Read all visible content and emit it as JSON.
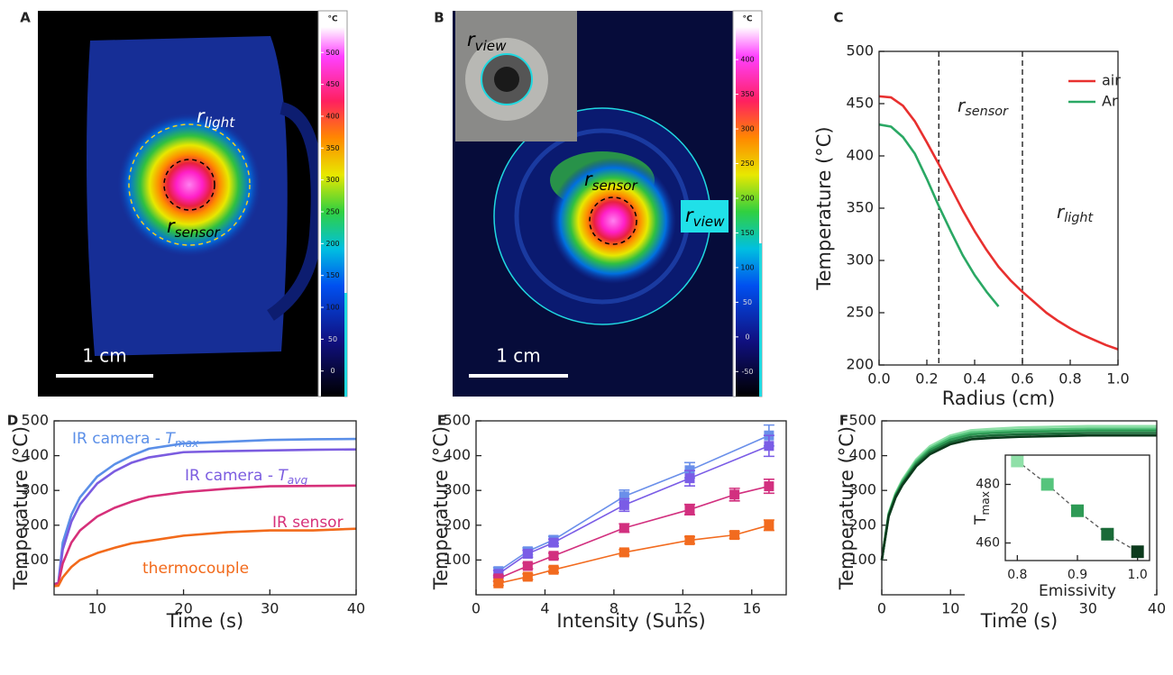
{
  "images": [
    {
      "panel": "A",
      "scale_bar": "1 cm",
      "annotations": [
        {
          "main": "r",
          "sub": "light"
        },
        {
          "main": "r",
          "sub": "sensor"
        }
      ],
      "colorbar": {
        "unit": "°C",
        "lim": [
          -40,
          540
        ],
        "ticks": [
          0,
          50,
          100,
          150,
          200,
          250,
          300,
          350,
          400,
          450,
          500
        ]
      }
    },
    {
      "panel": "B",
      "scale_bar": "1 cm",
      "annotations": [
        {
          "main": "r",
          "sub": "view"
        },
        {
          "main": "r",
          "sub": "sensor"
        },
        {
          "main": "r",
          "sub": "view"
        }
      ],
      "colorbar": {
        "unit": "°C",
        "lim": [
          -86,
          447
        ],
        "ticks": [
          -50,
          0,
          50,
          100,
          150,
          200,
          250,
          300,
          350,
          400
        ]
      }
    }
  ],
  "chart_data": [
    {
      "type": "line",
      "panel": "C",
      "xlabel": "Radius (cm)",
      "ylabel": "Temperature (°C)",
      "xlim": [
        0,
        1
      ],
      "xticks": [
        {
          "value": 0,
          "label": "0.0"
        },
        0.2,
        0.4,
        0.6,
        0.8,
        {
          "value": 1,
          "label": "1.0"
        }
      ],
      "ylim": [
        200,
        500
      ],
      "yticks": [
        200,
        250,
        300,
        350,
        400,
        450,
        500
      ],
      "legend": "upper right",
      "vlines": [
        0.25,
        0.6
      ],
      "annotations": [
        {
          "main": "r",
          "sub": "sensor"
        },
        {
          "main": "r",
          "sub": "light"
        }
      ],
      "series": [
        {
          "name": "air",
          "color": "#e8302f",
          "x": [
            0,
            0.05,
            0.1,
            0.15,
            0.2,
            0.25,
            0.3,
            0.35,
            0.4,
            0.45,
            0.5,
            0.55,
            0.6,
            0.65,
            0.7,
            0.75,
            0.8,
            0.85,
            0.9,
            0.95,
            1
          ],
          "values": [
            457,
            456,
            448,
            433,
            413,
            392,
            370,
            348,
            328,
            310,
            294,
            281,
            270,
            260,
            250,
            242,
            235,
            229,
            224,
            219,
            215
          ]
        },
        {
          "name": "Ar",
          "color": "#2aa864",
          "x": [
            0,
            0.05,
            0.1,
            0.15,
            0.2,
            0.25,
            0.3,
            0.35,
            0.4,
            0.45,
            0.5
          ],
          "values": [
            430,
            428,
            418,
            402,
            378,
            352,
            328,
            305,
            286,
            270,
            256
          ]
        }
      ]
    },
    {
      "type": "line",
      "panel": "D",
      "xlabel": "Time (s)",
      "ylabel": "Temperature (°C)",
      "xlim": [
        5,
        40
      ],
      "xticks": [
        10,
        20,
        30,
        40
      ],
      "ylim": [
        0,
        500
      ],
      "yticks": [
        100,
        200,
        300,
        400,
        500
      ],
      "x": [
        5,
        5.5,
        6,
        7,
        8,
        10,
        12,
        14,
        16,
        20,
        25,
        30,
        35,
        40
      ],
      "series": [
        {
          "label": {
            "text": "IR camera - ",
            "var": "T",
            "sub": "max"
          },
          "color": "#5b8fe8",
          "values": [
            30,
            35,
            150,
            230,
            280,
            340,
            375,
            400,
            420,
            435,
            440,
            445,
            447,
            448
          ]
        },
        {
          "label": {
            "text": "IR camera - ",
            "var": "T",
            "sub": "avg"
          },
          "color": "#7b5ce0",
          "values": [
            30,
            35,
            130,
            210,
            260,
            320,
            355,
            380,
            395,
            410,
            413,
            415,
            417,
            418
          ]
        },
        {
          "label": {
            "text": "IR sensor"
          },
          "color": "#d6307a",
          "values": [
            30,
            33,
            90,
            150,
            185,
            225,
            250,
            268,
            282,
            295,
            305,
            312,
            313,
            314
          ]
        },
        {
          "label": {
            "text": "thermocouple"
          },
          "color": "#f26a1b",
          "values": [
            25,
            26,
            50,
            80,
            100,
            120,
            135,
            148,
            155,
            170,
            180,
            185,
            185,
            190
          ]
        }
      ]
    },
    {
      "type": "errorbar",
      "panel": "E",
      "xlabel": "Intensity (Suns)",
      "ylabel": "Temperature (°C)",
      "xlim": [
        0,
        18
      ],
      "xticks": [
        0,
        4,
        8,
        12,
        16
      ],
      "ylim": [
        0,
        500
      ],
      "yticks": [
        100,
        200,
        300,
        400,
        500
      ],
      "series": [
        {
          "color": "#6a8fea",
          "x": [
            1.3,
            3,
            4.5,
            8.6,
            12.4,
            17
          ],
          "values": [
            68,
            125,
            158,
            283,
            358,
            458
          ],
          "errors": [
            10,
            10,
            10,
            18,
            22,
            30
          ]
        },
        {
          "color": "#7a5ce6",
          "x": [
            1.3,
            3,
            4.5,
            8.6,
            12.4,
            17
          ],
          "values": [
            60,
            118,
            150,
            258,
            335,
            428
          ],
          "errors": [
            10,
            10,
            10,
            18,
            22,
            30
          ]
        },
        {
          "color": "#d2307f",
          "x": [
            1.3,
            3,
            4.5,
            8.6,
            12.4,
            15,
            17
          ],
          "values": [
            47,
            83,
            112,
            192,
            245,
            288,
            312
          ],
          "errors": [
            8,
            8,
            8,
            12,
            15,
            18,
            20
          ]
        },
        {
          "color": "#f26b1f",
          "x": [
            1.3,
            3,
            4.5,
            8.6,
            12.4,
            15,
            17
          ],
          "values": [
            33,
            52,
            72,
            122,
            157,
            172,
            200
          ],
          "errors": [
            6,
            8,
            8,
            8,
            10,
            10,
            15
          ]
        }
      ]
    },
    {
      "type": "line",
      "panel": "F",
      "xlabel": "Time (s)",
      "ylabel": "Temperature (°C)",
      "xlim": [
        0,
        40
      ],
      "xticks": [
        0,
        10,
        20,
        30,
        40
      ],
      "ylim": [
        0,
        500
      ],
      "yticks": [
        100,
        200,
        300,
        400,
        500
      ],
      "x": [
        0,
        1,
        2,
        3,
        5,
        7,
        10,
        13,
        16,
        20,
        25,
        30,
        35,
        40
      ],
      "series": [
        {
          "color": "#8fe0a8",
          "values": [
            100,
            235,
            292,
            331,
            389,
            427,
            458,
            473,
            477,
            481,
            483,
            485,
            485,
            485
          ]
        },
        {
          "color": "#55c47c",
          "values": [
            100,
            232,
            289,
            327,
            384,
            421,
            452,
            467,
            470,
            474,
            476,
            478,
            478,
            478
          ]
        },
        {
          "color": "#2e9a55",
          "values": [
            100,
            230,
            286,
            323,
            379,
            416,
            446,
            461,
            465,
            468,
            470,
            472,
            472,
            472
          ]
        },
        {
          "color": "#1a6b38",
          "values": [
            100,
            228,
            283,
            319,
            374,
            410,
            439,
            454,
            458,
            461,
            463,
            465,
            465,
            465
          ]
        },
        {
          "color": "#0b3a1c",
          "values": [
            100,
            225,
            279,
            315,
            369,
            404,
            433,
            447,
            451,
            454,
            456,
            458,
            458,
            458
          ]
        }
      ]
    },
    {
      "type": "scatter",
      "xlabel": "Emissivity",
      "ylabel": {
        "main": "T",
        "sub": "max"
      },
      "xlim": [
        0.78,
        1.02
      ],
      "xticks": [
        0.8,
        0.9,
        {
          "value": 1,
          "label": "1.0"
        }
      ],
      "ylim": [
        454,
        490
      ],
      "yticks": [
        460,
        480
      ],
      "x": [
        0.8,
        0.85,
        0.9,
        0.95,
        1
      ],
      "values": [
        488,
        480,
        471,
        463,
        457
      ],
      "colors": [
        "#8fe0a8",
        "#55c47c",
        "#2e9a55",
        "#1a6b38",
        "#0b3a1c"
      ]
    }
  ]
}
